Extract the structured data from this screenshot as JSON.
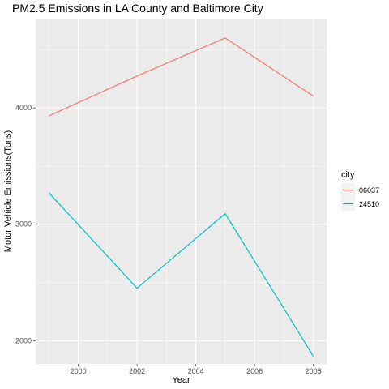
{
  "chart_data": {
    "type": "line",
    "title": "PM2.5 Emissions in LA County and Baltimore City",
    "xlabel": "Year",
    "ylabel": "Motor Vehicle Emissions(Tons)",
    "x": [
      1999,
      2002,
      2005,
      2008
    ],
    "xlim": [
      1998.55,
      2008.45
    ],
    "ylim": [
      1800,
      4760
    ],
    "x_ticks": [
      2000,
      2002,
      2004,
      2006,
      2008
    ],
    "y_ticks": [
      2000,
      3000,
      4000
    ],
    "grid": true,
    "legend": {
      "title": "city",
      "placement": "right"
    },
    "series": [
      {
        "name": "06037",
        "color": "#F8766D",
        "values": [
          3931,
          4274,
          4601,
          4101
        ]
      },
      {
        "name": "24510",
        "color": "#00BFC4",
        "values": [
          3270,
          2451,
          3091,
          1866
        ]
      }
    ]
  },
  "colors": {
    "panel_background": "#EBEBEB",
    "grid_major": "#FFFFFF",
    "tick_text": "#4D4D4D"
  }
}
